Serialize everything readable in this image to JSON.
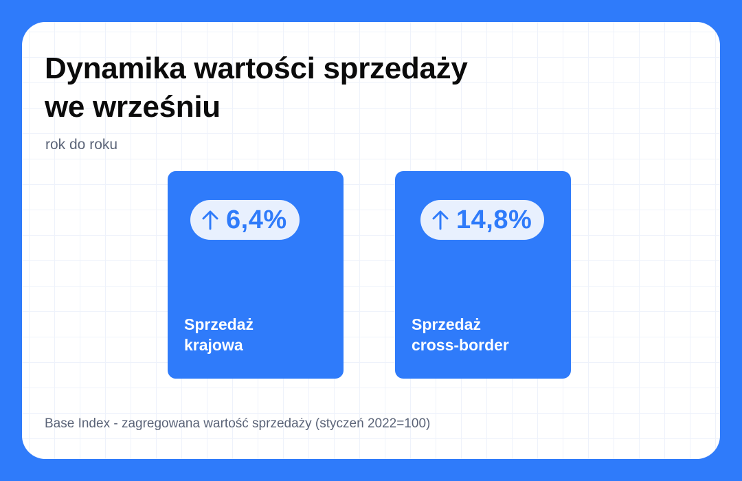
{
  "title_line1": "Dynamika wartości sprzedaży",
  "title_line2": "we wrześniu",
  "subtitle": "rok do roku",
  "tiles": [
    {
      "value": "6,4%",
      "label_line1": "Sprzedaż",
      "label_line2": "krajowa",
      "trend_icon": "arrow-up-icon"
    },
    {
      "value": "14,8%",
      "label_line1": "Sprzedaż",
      "label_line2": "cross-border",
      "trend_icon": "arrow-up-icon"
    }
  ],
  "footnote": "Base Index - zagregowana wartość sprzedaży (styczeń 2022=100)",
  "colors": {
    "accent": "#2f7bfa",
    "pill_bg": "#e8f0fe",
    "card_bg": "#ffffff",
    "muted_text": "#5b6478"
  }
}
